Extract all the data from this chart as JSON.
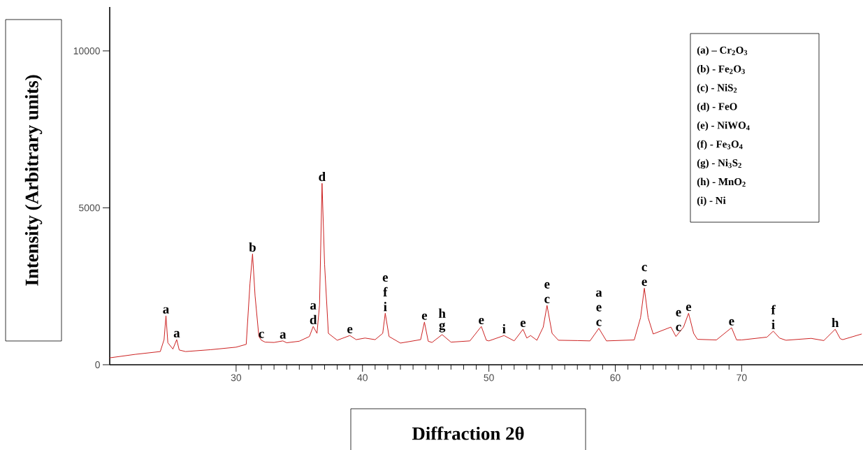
{
  "chart_data": {
    "type": "line",
    "xlabel": "Diffraction 2θ",
    "ylabel": "Intensity (Arbitrary units)",
    "xlim": [
      20,
      79.6
    ],
    "ylim": [
      0,
      11400
    ],
    "xticks": [
      30,
      40,
      50,
      60,
      70
    ],
    "yticks": [
      0,
      5000,
      10000
    ],
    "marker": "none",
    "line_style": "solid",
    "series": [
      {
        "color": "#cc2020",
        "x": [
          20,
          22,
          24,
          24.3,
          24.45,
          24.6,
          25.0,
          25.3,
          25.5,
          26,
          28,
          30,
          30.8,
          31.1,
          31.3,
          31.5,
          31.8,
          32.0,
          32.3,
          33,
          33.7,
          34,
          35,
          35.8,
          36.1,
          36.4,
          36.6,
          36.8,
          37.0,
          37.3,
          38,
          39.0,
          39.5,
          40.2,
          41,
          41.6,
          41.8,
          42.1,
          43,
          44.6,
          44.9,
          45.2,
          45.5,
          46.3,
          47,
          48.5,
          49.4,
          49.8,
          50,
          51.2,
          52,
          52.7,
          53.0,
          53.3,
          53.8,
          54.3,
          54.6,
          55.0,
          55.5,
          57,
          58,
          58.7,
          59.3,
          61.5,
          62.0,
          62.3,
          62.6,
          63,
          64.4,
          64.8,
          65.0,
          65.4,
          65.8,
          66.2,
          66.5,
          68,
          69.2,
          69.6,
          70,
          72,
          72.5,
          73.0,
          73.5,
          75.5,
          76.5,
          77.4,
          77.8,
          78,
          79.5
        ],
        "values": [
          220,
          330,
          420,
          800,
          1560,
          700,
          500,
          800,
          470,
          420,
          480,
          560,
          650,
          2600,
          3530,
          2200,
          900,
          780,
          720,
          710,
          760,
          700,
          750,
          900,
          1220,
          1000,
          1900,
          5780,
          3200,
          1000,
          780,
          930,
          800,
          850,
          800,
          1000,
          1640,
          900,
          690,
          800,
          1360,
          750,
          710,
          960,
          720,
          760,
          1220,
          780,
          760,
          930,
          760,
          1130,
          850,
          930,
          780,
          1200,
          1890,
          1000,
          780,
          770,
          760,
          1160,
          760,
          790,
          1500,
          2440,
          1500,
          980,
          1200,
          900,
          1000,
          1200,
          1640,
          1000,
          810,
          790,
          1180,
          790,
          790,
          880,
          1070,
          850,
          780,
          840,
          770,
          1130,
          830,
          800,
          980
        ]
      }
    ],
    "annotations": [
      {
        "text": "a",
        "x": 24.45,
        "y": 1560
      },
      {
        "text": "a",
        "x": 25.3,
        "y": 800
      },
      {
        "text": "b",
        "x": 31.3,
        "y": 3530
      },
      {
        "text": "c",
        "x": 32.0,
        "y": 780
      },
      {
        "text": "a",
        "x": 33.7,
        "y": 760
      },
      {
        "text": "a",
        "x": 36.1,
        "y": 1220
      },
      {
        "text": "d",
        "x": 36.1,
        "y": 1220
      },
      {
        "text": "d",
        "x": 36.8,
        "y": 5780
      },
      {
        "text": "e",
        "x": 39.0,
        "y": 930
      },
      {
        "text": "e",
        "x": 41.8,
        "y": 1640
      },
      {
        "text": "f",
        "x": 41.8,
        "y": 1640
      },
      {
        "text": "i",
        "x": 41.8,
        "y": 1640
      },
      {
        "text": "e",
        "x": 44.9,
        "y": 1360
      },
      {
        "text": "h",
        "x": 46.3,
        "y": 960
      },
      {
        "text": "g",
        "x": 46.3,
        "y": 960
      },
      {
        "text": "e",
        "x": 49.4,
        "y": 1220
      },
      {
        "text": "i",
        "x": 51.2,
        "y": 930
      },
      {
        "text": "e",
        "x": 52.7,
        "y": 1130
      },
      {
        "text": "e",
        "x": 54.6,
        "y": 1890
      },
      {
        "text": "c",
        "x": 54.6,
        "y": 1890
      },
      {
        "text": "a",
        "x": 58.7,
        "y": 1160
      },
      {
        "text": "e",
        "x": 58.7,
        "y": 1160
      },
      {
        "text": "c",
        "x": 58.7,
        "y": 1160
      },
      {
        "text": "c",
        "x": 62.3,
        "y": 2440
      },
      {
        "text": "e",
        "x": 62.3,
        "y": 2440
      },
      {
        "text": "e",
        "x": 65.0,
        "y": 1000
      },
      {
        "text": "c",
        "x": 65.0,
        "y": 1000
      },
      {
        "text": "e",
        "x": 65.8,
        "y": 1640
      },
      {
        "text": "e",
        "x": 69.2,
        "y": 1180
      },
      {
        "text": "f",
        "x": 72.5,
        "y": 1070
      },
      {
        "text": "i",
        "x": 72.5,
        "y": 1070
      },
      {
        "text": "h",
        "x": 77.4,
        "y": 1130
      },
      "(a) – Cr$_{2}$O$_{3}$",
      "(b) -  Fe$_{2}$O$_{3}$",
      "(c) -  NiS$_{2}$",
      "(d) -  FeO",
      "(e) -  NiWO$_{4}$",
      "(f) -  Fe$_{3}$O$_{4}$",
      "(g)  -  Ni$_{3}$S$_{2}$",
      "(h) -  MnO$_{2}$",
      "(i) -  Ni"
    ]
  }
}
